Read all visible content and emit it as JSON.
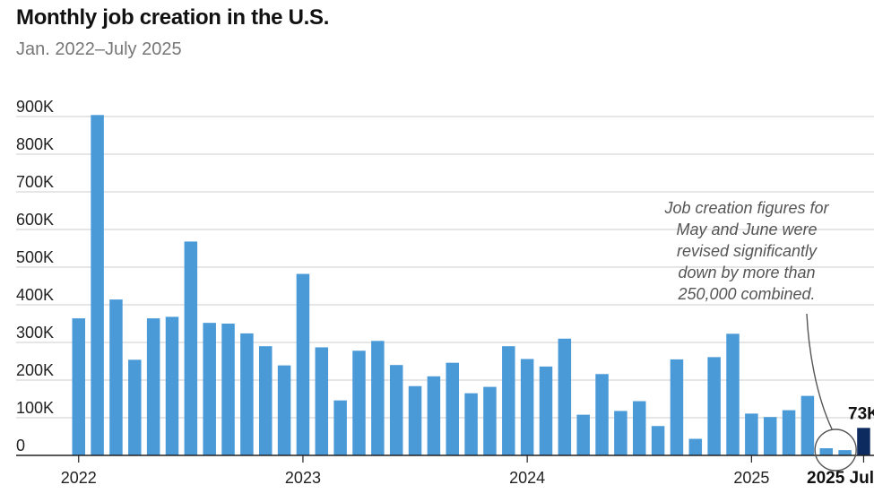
{
  "chart_data": {
    "type": "bar",
    "title": "Monthly job creation in the U.S.",
    "subtitle": "Jan. 2022–July 2025",
    "ylim": [
      0,
      900000
    ],
    "yticks": [
      {
        "value": 0,
        "label": "0"
      },
      {
        "value": 100000,
        "label": "100K"
      },
      {
        "value": 200000,
        "label": "200K"
      },
      {
        "value": 300000,
        "label": "300K"
      },
      {
        "value": 400000,
        "label": "400K"
      },
      {
        "value": 500000,
        "label": "500K"
      },
      {
        "value": 600000,
        "label": "600K"
      },
      {
        "value": 700000,
        "label": "700K"
      },
      {
        "value": 800000,
        "label": "800K"
      },
      {
        "value": 900000,
        "label": "900K"
      }
    ],
    "grid": true,
    "categories": [
      "2022-01",
      "2022-02",
      "2022-03",
      "2022-04",
      "2022-05",
      "2022-06",
      "2022-07",
      "2022-08",
      "2022-09",
      "2022-10",
      "2022-11",
      "2022-12",
      "2023-01",
      "2023-02",
      "2023-03",
      "2023-04",
      "2023-05",
      "2023-06",
      "2023-07",
      "2023-08",
      "2023-09",
      "2023-10",
      "2023-11",
      "2023-12",
      "2024-01",
      "2024-02",
      "2024-03",
      "2024-04",
      "2024-05",
      "2024-06",
      "2024-07",
      "2024-08",
      "2024-09",
      "2024-10",
      "2024-11",
      "2024-12",
      "2025-01",
      "2025-02",
      "2025-03",
      "2025-04",
      "2025-05",
      "2025-06",
      "2025-07"
    ],
    "values": [
      364000,
      904000,
      414000,
      254000,
      364000,
      368000,
      568000,
      352000,
      350000,
      324000,
      290000,
      239000,
      482000,
      287000,
      146000,
      278000,
      304000,
      240000,
      184000,
      210000,
      246000,
      165000,
      182000,
      290000,
      256000,
      236000,
      310000,
      108000,
      216000,
      118000,
      144000,
      78000,
      255000,
      44000,
      261000,
      323000,
      111000,
      102000,
      120000,
      158000,
      19000,
      14000,
      73000
    ],
    "colors": {
      "default": "#4b9ad8",
      "highlight": "#0d2b5e",
      "grid": "#cccccc",
      "axis": "#222222"
    },
    "highlight_index": 42,
    "data_label": {
      "index": 42,
      "text": "73K"
    },
    "xtick_labels": [
      {
        "index": 0,
        "label": "2022",
        "bold": false
      },
      {
        "index": 12,
        "label": "2023",
        "bold": false
      },
      {
        "index": 24,
        "label": "2024",
        "bold": false
      },
      {
        "index": 36,
        "label": "2025",
        "bold": false
      },
      {
        "index": 42,
        "label": "2025 Jul",
        "bold": true
      }
    ],
    "annotation": {
      "lines": [
        "Job creation figures for",
        "May and June were",
        "revised significantly",
        "down by more than",
        "250,000 combined."
      ],
      "target_indices": [
        40,
        41
      ]
    }
  }
}
